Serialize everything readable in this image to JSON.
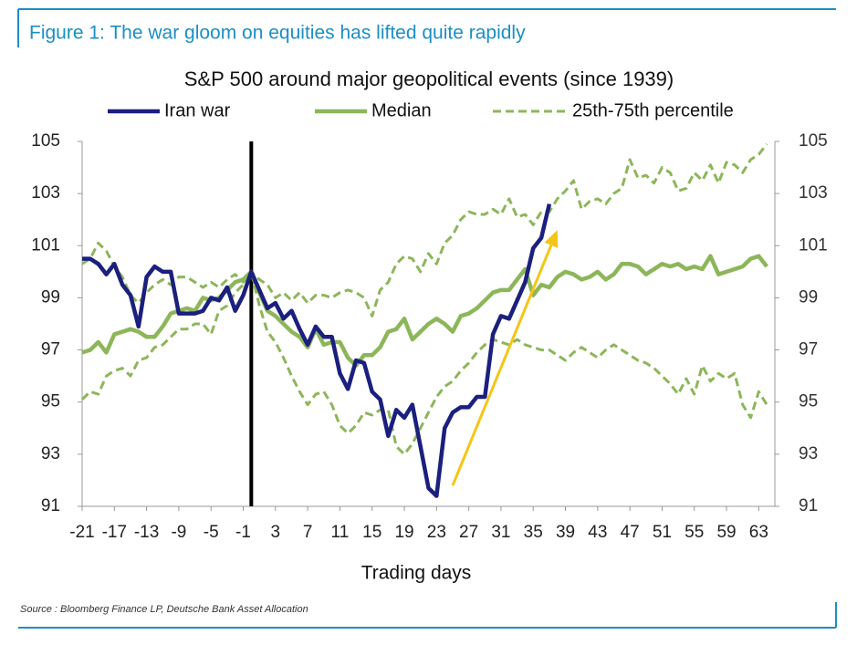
{
  "figure_title": "Figure 1: The war gloom on equities has lifted quite rapidly",
  "source": "Source : Bloomberg Finance LP, Deutsche Bank Asset Allocation",
  "chart_data": {
    "type": "line",
    "title": "S&P 500 around major geopolitical events (since 1939)",
    "x_label": "Trading days",
    "x": [
      -21,
      -20,
      -19,
      -18,
      -17,
      -16,
      -15,
      -14,
      -13,
      -12,
      -11,
      -10,
      -9,
      -8,
      -7,
      -6,
      -5,
      -4,
      -3,
      -2,
      -1,
      0,
      1,
      2,
      3,
      4,
      5,
      6,
      7,
      8,
      9,
      10,
      11,
      12,
      13,
      14,
      15,
      16,
      17,
      18,
      19,
      20,
      21,
      22,
      23,
      24,
      25,
      26,
      27,
      28,
      29,
      30,
      31,
      32,
      33,
      34,
      35,
      36,
      37,
      38,
      39,
      40,
      41,
      42,
      43,
      44,
      45,
      46,
      47,
      48,
      49,
      50,
      51,
      52,
      53,
      54,
      55,
      56,
      57,
      58,
      59,
      60,
      61,
      62,
      63,
      64
    ],
    "xlim": [
      -21,
      65
    ],
    "xticks": [
      -21,
      -17,
      -13,
      -9,
      -5,
      -1,
      3,
      7,
      11,
      15,
      19,
      23,
      27,
      31,
      35,
      39,
      43,
      47,
      51,
      55,
      59,
      63
    ],
    "ylim": [
      91,
      105
    ],
    "yticks": [
      91,
      93,
      95,
      97,
      99,
      101,
      103,
      105
    ],
    "y2lim": [
      91,
      105
    ],
    "y2ticks": [
      91,
      93,
      95,
      97,
      99,
      101,
      103,
      105
    ],
    "vline": {
      "x": 0,
      "color": "#000000"
    },
    "annotations": [
      {
        "type": "arrow",
        "x": [
          25,
          38
        ],
        "y": [
          91.8,
          101.6
        ],
        "color": "#f5c518"
      }
    ],
    "series": [
      {
        "name": "Iran war",
        "color": "#1b1f7e",
        "dashed": false,
        "values": [
          100.5,
          100.5,
          100.3,
          99.9,
          100.3,
          99.5,
          99.1,
          97.9,
          99.8,
          100.2,
          100.0,
          100.0,
          98.4,
          98.4,
          98.4,
          98.5,
          99.0,
          98.9,
          99.4,
          98.5,
          99.1,
          100.0,
          99.3,
          98.6,
          98.8,
          98.2,
          98.5,
          97.8,
          97.2,
          97.9,
          97.5,
          97.5,
          96.1,
          95.5,
          96.6,
          96.5,
          95.4,
          95.1,
          93.7,
          94.7,
          94.4,
          94.9,
          93.3,
          91.7,
          91.4,
          94.0,
          94.6,
          94.8,
          94.8,
          95.2,
          95.2,
          97.6,
          98.3,
          98.2,
          98.9,
          99.6,
          100.9,
          101.3,
          102.6,
          null,
          null,
          null,
          null,
          null,
          null,
          null,
          null,
          null,
          null,
          null,
          null,
          null,
          null,
          null,
          null,
          null,
          null,
          null,
          null,
          null,
          null,
          null,
          null,
          null,
          null,
          null
        ]
      },
      {
        "name": "Median",
        "color": "#8db65a",
        "dashed": false,
        "values": [
          96.9,
          97.0,
          97.3,
          96.9,
          97.6,
          97.7,
          97.8,
          97.7,
          97.5,
          97.5,
          97.9,
          98.4,
          98.5,
          98.6,
          98.5,
          99.0,
          98.9,
          99.0,
          99.3,
          99.6,
          99.7,
          100.0,
          99.2,
          98.5,
          98.3,
          98.0,
          97.7,
          97.5,
          97.1,
          97.8,
          97.2,
          97.3,
          97.3,
          96.7,
          96.4,
          96.8,
          96.8,
          97.1,
          97.7,
          97.8,
          98.2,
          97.4,
          97.7,
          98.0,
          98.2,
          98.0,
          97.7,
          98.3,
          98.4,
          98.6,
          98.9,
          99.2,
          99.3,
          99.3,
          99.7,
          100.1,
          99.1,
          99.5,
          99.4,
          99.8,
          100.0,
          99.9,
          99.7,
          99.8,
          100.0,
          99.7,
          99.9,
          100.3,
          100.3,
          100.2,
          99.9,
          100.1,
          100.3,
          100.2,
          100.3,
          100.1,
          100.2,
          100.1,
          100.6,
          99.9,
          100.0,
          100.1,
          100.2,
          100.5,
          100.6,
          100.2
        ]
      },
      {
        "name": "25th-75th percentile",
        "color": "#8db65a",
        "dashed": true,
        "values": [
          100.3,
          100.5,
          101.1,
          100.8,
          100.2,
          99.8,
          99.1,
          98.8,
          99.2,
          99.5,
          99.7,
          99.5,
          99.8,
          99.8,
          99.6,
          99.4,
          99.6,
          99.4,
          99.7,
          99.9,
          99.6,
          100.0,
          99.7,
          99.5,
          99.0,
          99.2,
          98.9,
          99.2,
          98.8,
          99.1,
          99.1,
          99.0,
          99.2,
          99.3,
          99.2,
          99.0,
          98.3,
          99.3,
          99.6,
          100.3,
          100.6,
          100.5,
          100.0,
          100.7,
          100.3,
          101.1,
          101.4,
          102.0,
          102.3,
          102.2,
          102.2,
          102.4,
          102.2,
          102.8,
          102.1,
          102.2,
          101.8,
          102.3,
          102.3,
          102.8,
          103.1,
          103.5,
          102.4,
          102.7,
          102.8,
          102.6,
          103.0,
          103.2,
          104.3,
          103.6,
          103.7,
          103.4,
          104.0,
          103.8,
          103.1,
          103.2,
          103.8,
          103.5,
          104.1,
          103.4,
          104.2,
          104.1,
          103.8,
          104.3,
          104.5,
          104.9
        ],
        "lower": [
          95.1,
          95.4,
          95.3,
          96.0,
          96.2,
          96.3,
          96.0,
          96.6,
          96.7,
          97.1,
          97.2,
          97.5,
          97.8,
          97.8,
          98.0,
          98.0,
          97.6,
          98.5,
          98.7,
          99.2,
          99.5,
          100.0,
          98.7,
          97.7,
          97.3,
          96.7,
          96.0,
          95.4,
          94.9,
          95.3,
          95.4,
          94.9,
          94.1,
          93.8,
          94.1,
          94.6,
          94.5,
          94.7,
          94.7,
          93.3,
          93.0,
          93.4,
          94.0,
          94.6,
          95.2,
          95.6,
          95.8,
          96.2,
          96.5,
          96.9,
          97.2,
          97.4,
          97.3,
          97.2,
          97.4,
          97.2,
          97.1,
          97.0,
          97.0,
          96.8,
          96.6,
          96.9,
          97.1,
          96.9,
          96.7,
          97.0,
          97.2,
          97.0,
          96.8,
          96.6,
          96.5,
          96.3,
          96.0,
          95.7,
          95.3,
          95.9,
          95.3,
          96.4,
          95.8,
          96.1,
          95.9,
          96.1,
          94.9,
          94.4,
          95.4,
          94.9
        ]
      }
    ]
  }
}
